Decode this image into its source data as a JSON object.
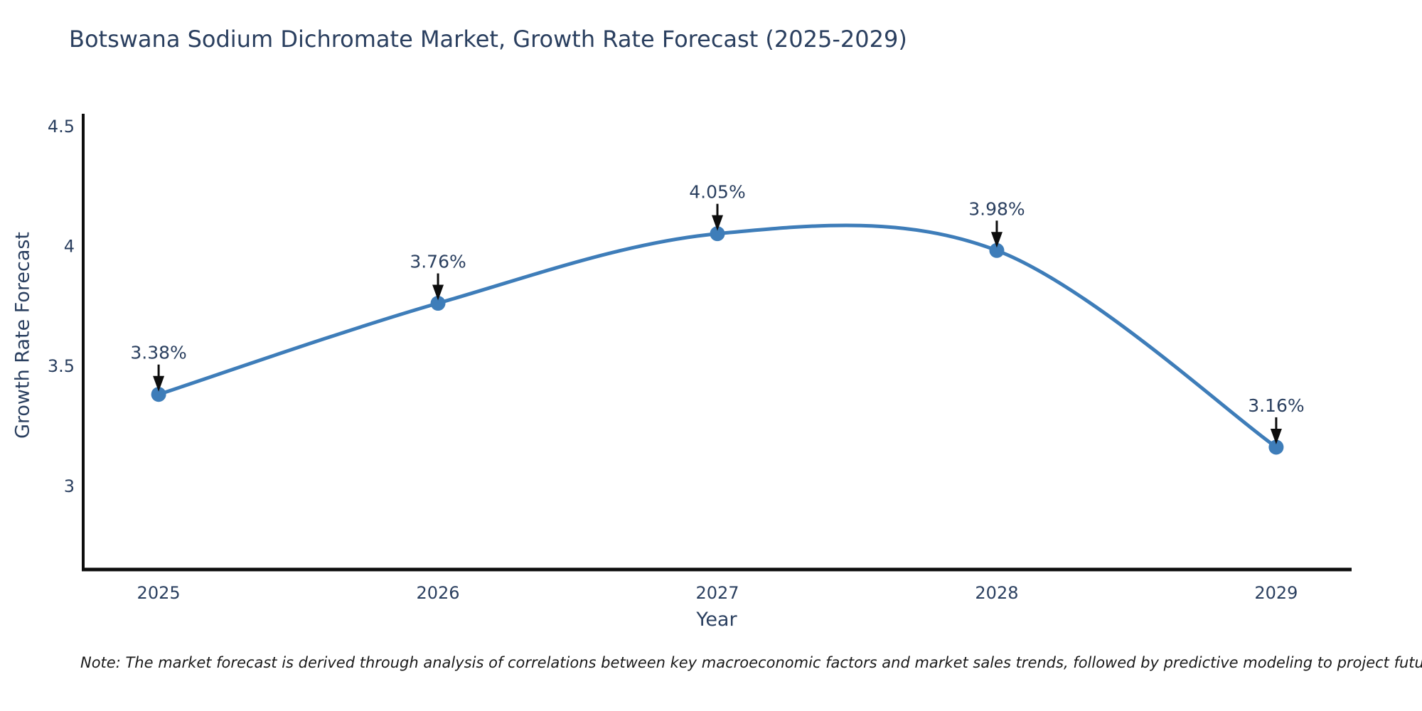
{
  "title": "Botswana Sodium Dichromate Market, Growth Rate Forecast (2025-2029)",
  "footnote": "Note: The market forecast is derived through analysis of correlations between key macroeconomic factors and market sales trends, followed by predictive modeling to project future sales",
  "colors": {
    "accent": "#3e7db9",
    "text": "#2a3f5f",
    "axis": "#0d0d0d",
    "arrow": "#0d0d0d",
    "background": "#ffffff"
  },
  "chart_data": {
    "type": "line",
    "title": "Botswana Sodium Dichromate Market, Growth Rate Forecast (2025-2029)",
    "xlabel": "Year",
    "ylabel": "Growth Rate Forecast",
    "x": [
      2025,
      2026,
      2027,
      2028,
      2029
    ],
    "values": [
      3.38,
      3.76,
      4.05,
      3.98,
      3.16
    ],
    "point_labels": [
      "3.38%",
      "3.76%",
      "4.05%",
      "3.98%",
      "3.16%"
    ],
    "unit": "%",
    "xticks": [
      "2025",
      "2026",
      "2027",
      "2028",
      "2029"
    ],
    "yticks": [
      3,
      3.5,
      4,
      4.5
    ],
    "xlim": [
      2024.73,
      2029.27
    ],
    "ylim": [
      2.65,
      4.55
    ],
    "grid": false,
    "legend": null,
    "line_shape": "spline",
    "marker": "circle",
    "annotations_arrow": true
  }
}
